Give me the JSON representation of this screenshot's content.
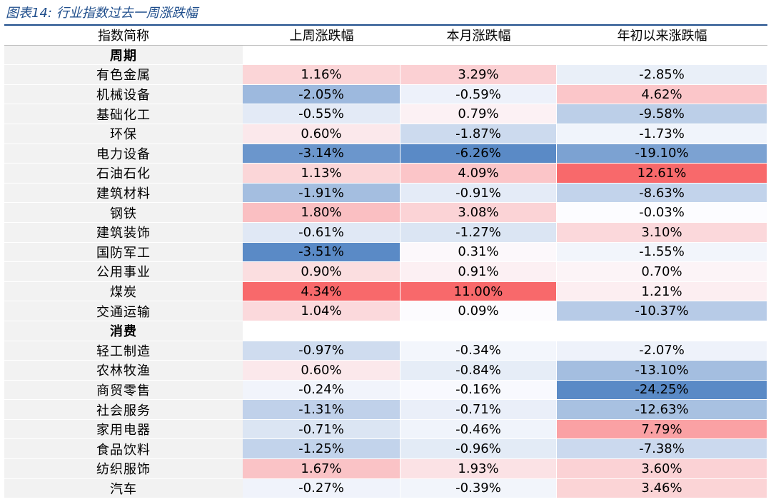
{
  "caption": {
    "label": "图表14:",
    "title": "行业指数过去一周涨跌幅"
  },
  "table": {
    "headers": [
      "指数简称",
      "上周涨跌幅",
      "本月涨跌幅",
      "年初以来涨跌幅"
    ],
    "groups": [
      {
        "name": "周期",
        "rows": [
          {
            "name": "有色金属",
            "values": [
              "1.16%",
              "3.29%",
              "-2.85%"
            ]
          },
          {
            "name": "机械设备",
            "values": [
              "-2.05%",
              "-0.59%",
              "4.62%"
            ]
          },
          {
            "name": "基础化工",
            "values": [
              "-0.55%",
              "0.79%",
              "-9.58%"
            ]
          },
          {
            "name": "环保",
            "values": [
              "0.60%",
              "-1.87%",
              "-1.73%"
            ]
          },
          {
            "name": "电力设备",
            "values": [
              "-3.14%",
              "-6.26%",
              "-19.10%"
            ]
          },
          {
            "name": "石油石化",
            "values": [
              "1.13%",
              "4.09%",
              "12.61%"
            ]
          },
          {
            "name": "建筑材料",
            "values": [
              "-1.91%",
              "-0.91%",
              "-8.63%"
            ]
          },
          {
            "name": "钢铁",
            "values": [
              "1.80%",
              "3.08%",
              "-0.03%"
            ]
          },
          {
            "name": "建筑装饰",
            "values": [
              "-0.61%",
              "-1.27%",
              "3.10%"
            ]
          },
          {
            "name": "国防军工",
            "values": [
              "-3.51%",
              "0.31%",
              "-1.55%"
            ]
          },
          {
            "name": "公用事业",
            "values": [
              "0.90%",
              "0.91%",
              "0.70%"
            ]
          },
          {
            "name": "煤炭",
            "values": [
              "4.34%",
              "11.00%",
              "1.21%"
            ]
          },
          {
            "name": "交通运输",
            "values": [
              "1.04%",
              "0.09%",
              "-10.37%"
            ]
          }
        ]
      },
      {
        "name": "消费",
        "rows": [
          {
            "name": "轻工制造",
            "values": [
              "-0.97%",
              "-0.34%",
              "-2.07%"
            ]
          },
          {
            "name": "农林牧渔",
            "values": [
              "0.60%",
              "-0.84%",
              "-13.10%"
            ]
          },
          {
            "name": "商贸零售",
            "values": [
              "-0.24%",
              "-0.16%",
              "-24.25%"
            ]
          },
          {
            "name": "社会服务",
            "values": [
              "-1.31%",
              "-0.71%",
              "-12.63%"
            ]
          },
          {
            "name": "家用电器",
            "values": [
              "-0.71%",
              "-0.46%",
              "7.79%"
            ]
          },
          {
            "name": "食品饮料",
            "values": [
              "-1.25%",
              "-0.96%",
              "-7.38%"
            ]
          },
          {
            "name": "纺织服饰",
            "values": [
              "1.67%",
              "1.93%",
              "3.60%"
            ]
          },
          {
            "name": "汽车",
            "values": [
              "-0.27%",
              "-0.39%",
              "3.46%"
            ]
          }
        ]
      }
    ]
  },
  "colors": {
    "caption": "#1f4e8c",
    "name_cell": "#f2f2f2",
    "positive_max": "#f8696b",
    "negative_max": "#5a8ac6",
    "neutral": "#fcfcff"
  }
}
